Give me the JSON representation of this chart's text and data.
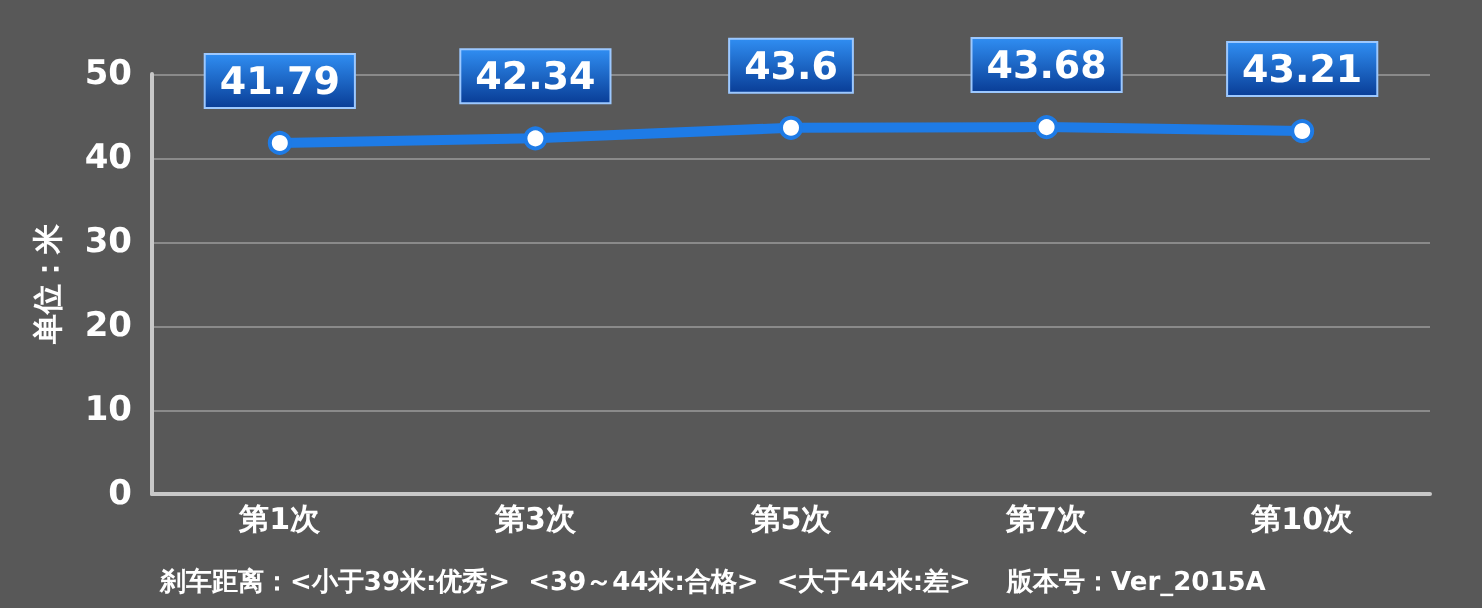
{
  "chart_data": {
    "type": "line",
    "ylabel": "单位：米",
    "categories": [
      "第1次",
      "第3次",
      "第5次",
      "第7次",
      "第10次"
    ],
    "series": [
      {
        "color": "#1e7be6",
        "values": [
          41.79,
          42.34,
          43.6,
          43.68,
          43.21
        ]
      }
    ],
    "ylim": [
      0,
      50
    ],
    "yticks": [
      0,
      10,
      20,
      30,
      40,
      50
    ],
    "grid": "y",
    "marker": "circle",
    "line_style": "solid",
    "data_labels": true,
    "annotations": [
      "刹车距离：<小于39米:优秀>  <39～44米:合格>  <大于44米:差>    版本号：Ver_2015A"
    ]
  }
}
